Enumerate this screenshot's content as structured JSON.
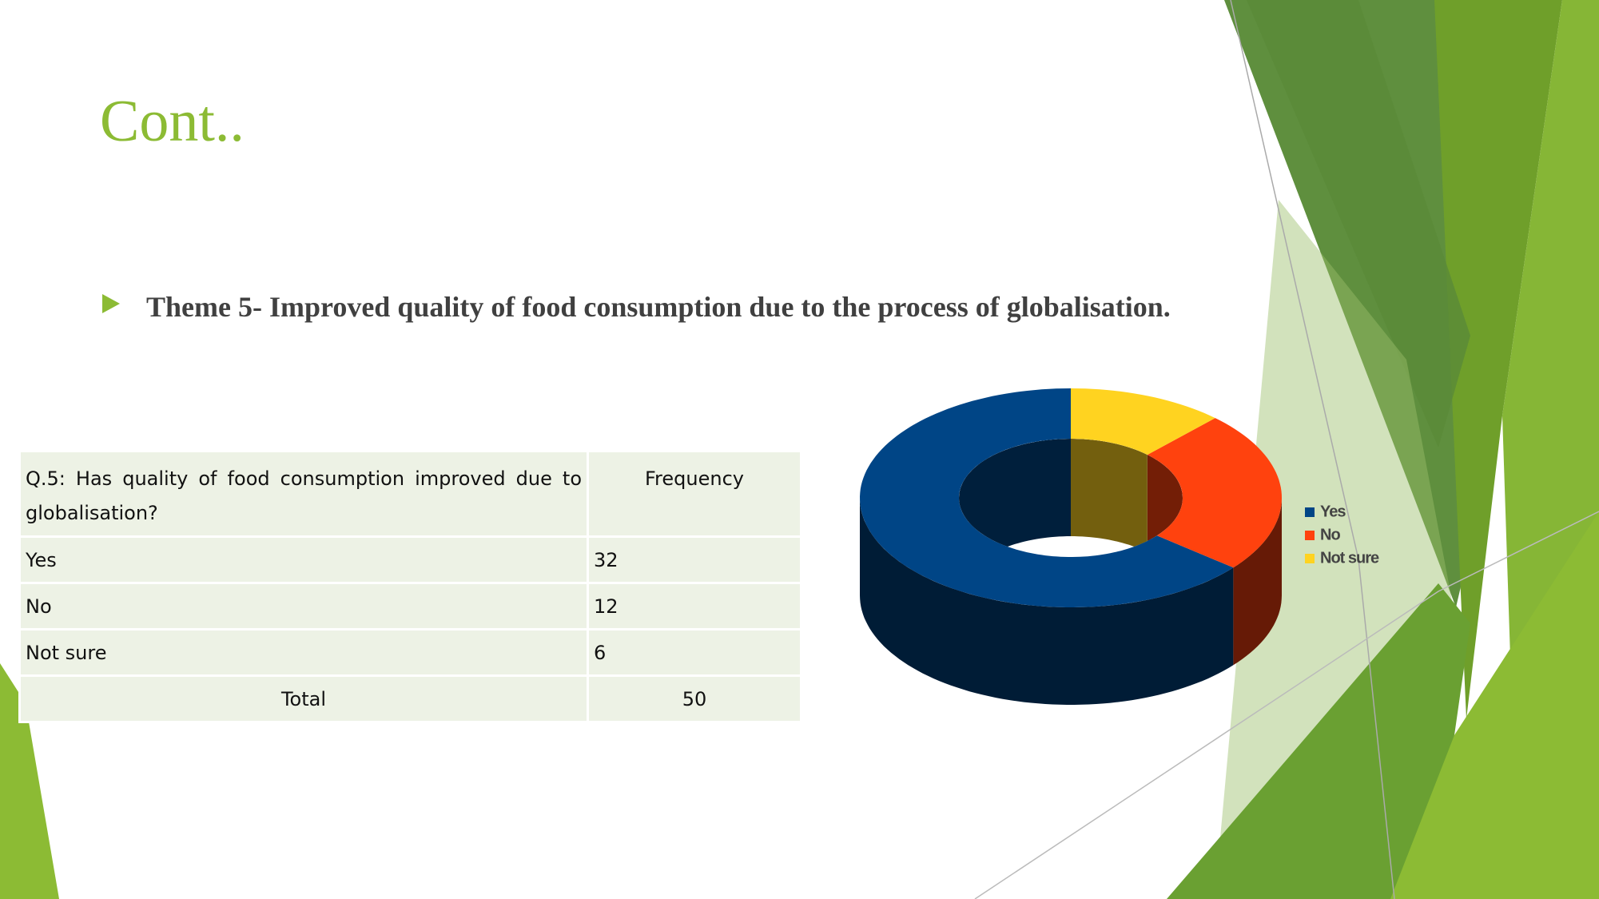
{
  "title": "Cont..",
  "bullet": "Theme 5- Improved quality of food consumption due to the process of globalisation.",
  "table": {
    "header": [
      "Q.5: Has quality of food consumption improved due to globalisation?",
      "Frequency"
    ],
    "rows": [
      [
        "Yes",
        "32"
      ],
      [
        "No",
        "12"
      ],
      [
        "Not sure",
        "6"
      ],
      [
        "Total",
        "50"
      ]
    ]
  },
  "chart_data": {
    "type": "donut",
    "categories": [
      "Yes",
      "No",
      "Not sure"
    ],
    "values": [
      32,
      12,
      6
    ],
    "colors": [
      "#004586",
      "#ff420e",
      "#ffd320"
    ],
    "legend": "right"
  }
}
